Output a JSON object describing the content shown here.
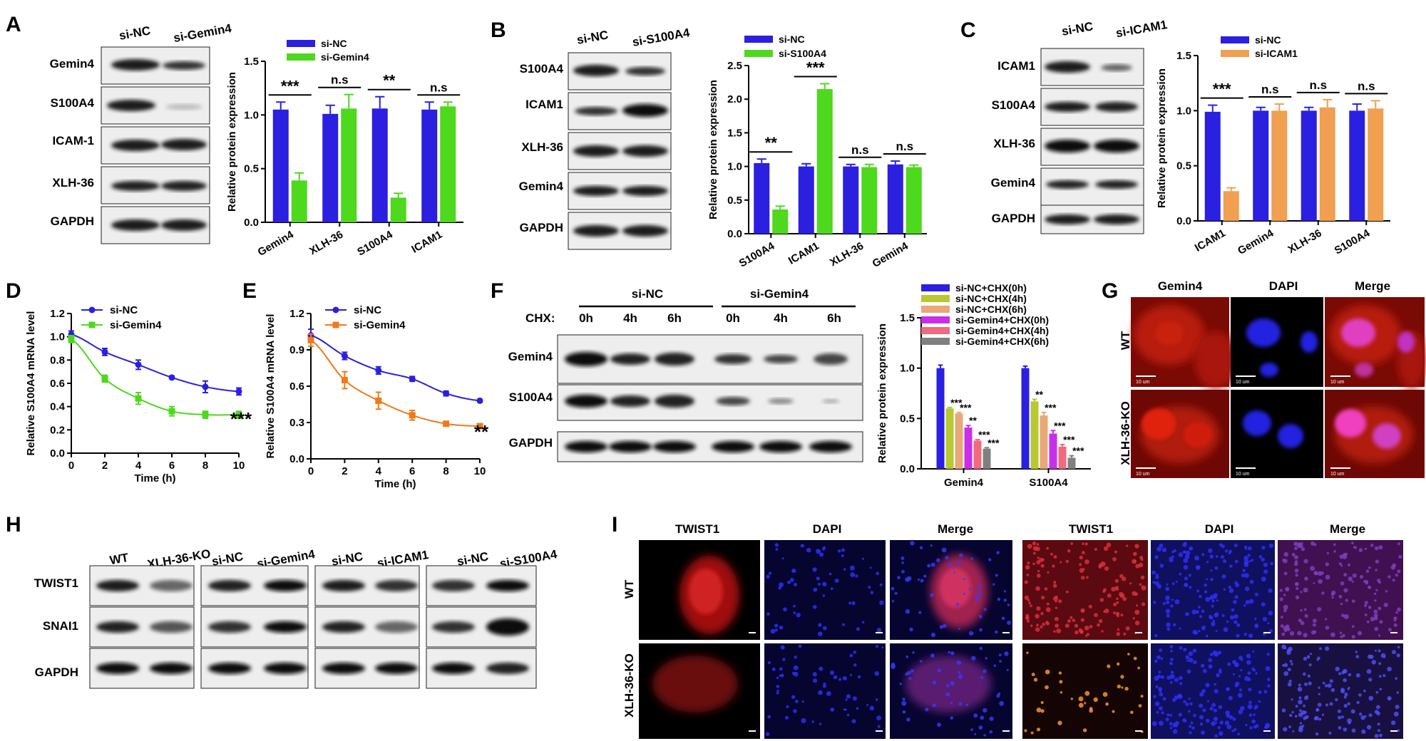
{
  "panel_labels": {
    "A": "A",
    "B": "B",
    "C": "C",
    "D": "D",
    "E": "E",
    "F": "F",
    "G": "G",
    "H": "H",
    "I": "I"
  },
  "blots": {
    "A": {
      "headers": [
        "si-NC",
        "si-Gemin4"
      ],
      "rows": [
        "Gemin4",
        "S100A4",
        "ICAM-1",
        "XLH-36",
        "GAPDH"
      ]
    },
    "B": {
      "headers": [
        "si-NC",
        "si-S100A4"
      ],
      "rows": [
        "S100A4",
        "ICAM1",
        "XLH-36",
        "Gemin4",
        "GAPDH"
      ]
    },
    "C": {
      "headers": [
        "si-NC",
        "si-ICAM1"
      ],
      "rows": [
        "ICAM1",
        "S100A4",
        "XLH-36",
        "Gemin4",
        "GAPDH"
      ]
    },
    "F": {
      "groups": [
        "si-NC",
        "si-Gemin4"
      ],
      "chx_label": "CHX:",
      "times": [
        "0h",
        "4h",
        "6h",
        "0h",
        "4h",
        "6h"
      ],
      "rows": [
        "Gemin4",
        "S100A4",
        "GAPDH"
      ]
    },
    "H": {
      "headers": [
        "WT",
        "XLH-36-KO",
        "si-NC",
        "si-Gemin4",
        "si-NC",
        "si-ICAM1",
        "si-NC",
        "si-S100A4"
      ],
      "rows": [
        "TWIST1",
        "SNAI1",
        "GAPDH"
      ]
    }
  },
  "chart_data": [
    {
      "id": "A",
      "type": "bar",
      "categories": [
        "Gemin4",
        "XLH-36",
        "S100A4",
        "ICAM1"
      ],
      "series": [
        {
          "name": "si-NC",
          "values": [
            1.05,
            1.01,
            1.06,
            1.05
          ],
          "errors": [
            0.07,
            0.08,
            0.11,
            0.07
          ],
          "color": "#2b1fe0"
        },
        {
          "name": "si-Gemin4",
          "values": [
            0.39,
            1.06,
            0.23,
            1.08
          ],
          "errors": [
            0.07,
            0.13,
            0.04,
            0.04
          ],
          "color": "#4ed81e"
        }
      ],
      "ylabel": "Relative protein expression",
      "ylim": [
        0,
        1.5
      ],
      "yticks": [
        "0.0",
        "0.5",
        "1.0",
        "1.5"
      ],
      "significance": [
        "***",
        "n.s",
        "**",
        "n.s"
      ]
    },
    {
      "id": "B",
      "type": "bar",
      "categories": [
        "S100A4",
        "ICAM1",
        "XLH-36",
        "Gemin4"
      ],
      "series": [
        {
          "name": "si-NC",
          "values": [
            1.05,
            1.0,
            1.0,
            1.03
          ],
          "errors": [
            0.06,
            0.04,
            0.03,
            0.05
          ],
          "color": "#2b1fe0"
        },
        {
          "name": "si-S100A4",
          "values": [
            0.36,
            2.15,
            0.99,
            0.99
          ],
          "errors": [
            0.05,
            0.08,
            0.04,
            0.03
          ],
          "color": "#4ed81e"
        }
      ],
      "ylabel": "Relative protein expression",
      "ylim": [
        0,
        2.5
      ],
      "yticks": [
        "0.0",
        "0.5",
        "1.0",
        "1.5",
        "2.0",
        "2.5"
      ],
      "significance": [
        "**",
        "***",
        "n.s",
        "n.s"
      ]
    },
    {
      "id": "C",
      "type": "bar",
      "categories": [
        "ICAM1",
        "Gemin4",
        "XLH-36",
        "S100A4"
      ],
      "series": [
        {
          "name": "si-NC",
          "values": [
            0.99,
            1.0,
            1.0,
            1.0
          ],
          "errors": [
            0.06,
            0.03,
            0.03,
            0.06
          ],
          "color": "#2b1fe0"
        },
        {
          "name": "si-ICAM1",
          "values": [
            0.27,
            1.0,
            1.03,
            1.02
          ],
          "errors": [
            0.03,
            0.06,
            0.07,
            0.07
          ],
          "color": "#f0a050"
        }
      ],
      "ylabel": "Relative protein expression",
      "ylim": [
        0,
        1.5
      ],
      "yticks": [
        "0.0",
        "0.5",
        "1.0",
        "1.5"
      ],
      "significance": [
        "***",
        "n.s",
        "n.s",
        "n.s"
      ]
    },
    {
      "id": "D",
      "type": "line",
      "x": [
        0,
        2,
        4,
        6,
        8,
        10
      ],
      "series": [
        {
          "name": "si-NC",
          "values": [
            1.02,
            0.87,
            0.76,
            0.65,
            0.57,
            0.53
          ],
          "errors": [
            0.03,
            0.03,
            0.04,
            0.01,
            0.05,
            0.03
          ],
          "color": "#2b1fe0"
        },
        {
          "name": "si-Gemin4",
          "values": [
            0.98,
            0.64,
            0.47,
            0.36,
            0.33,
            0.33
          ],
          "errors": [
            0.03,
            0.03,
            0.05,
            0.04,
            0.03,
            0.03
          ],
          "color": "#4ed81e"
        }
      ],
      "xlabel": "Time (h)",
      "ylabel": "Relative S100A4 mRNA level",
      "xlim": [
        0,
        10
      ],
      "ylim": [
        0,
        1.2
      ],
      "xticks": [
        "0",
        "2",
        "4",
        "6",
        "8",
        "10"
      ],
      "yticks": [
        "0.0",
        "0.2",
        "0.4",
        "0.6",
        "0.8",
        "1.0",
        "1.2"
      ],
      "annotation": "***"
    },
    {
      "id": "E",
      "type": "line",
      "x": [
        0,
        2,
        4,
        6,
        8,
        10
      ],
      "series": [
        {
          "name": "si-NC",
          "values": [
            1.02,
            0.85,
            0.73,
            0.66,
            0.54,
            0.48
          ],
          "errors": [
            0.05,
            0.03,
            0.03,
            0.02,
            0.02,
            0.01
          ],
          "color": "#2b1fe0"
        },
        {
          "name": "si-Gemin4",
          "values": [
            0.98,
            0.65,
            0.48,
            0.36,
            0.29,
            0.27
          ],
          "errors": [
            0.05,
            0.07,
            0.07,
            0.04,
            0.01,
            0.01
          ],
          "color": "#f07a1a"
        }
      ],
      "xlabel": "Time (h)",
      "ylabel": "Relative S100A4 mRNA level",
      "xlim": [
        0,
        10
      ],
      "ylim": [
        0,
        1.2
      ],
      "xticks": [
        "0",
        "2",
        "4",
        "6",
        "8",
        "10"
      ],
      "yticks": [
        "0.0",
        "0.3",
        "0.6",
        "0.9",
        "1.2"
      ],
      "annotation": "**"
    },
    {
      "id": "F",
      "type": "bar",
      "categories": [
        "Gemin4",
        "S100A4"
      ],
      "series": [
        {
          "name": "si-NC+CHX(0h)",
          "values": [
            1.0,
            1.0
          ],
          "errors": [
            0.03,
            0.02
          ],
          "color": "#2b1fe0"
        },
        {
          "name": "si-NC+CHX(4h)",
          "values": [
            0.6,
            0.67
          ],
          "errors": [
            0.01,
            0.02
          ],
          "color": "#b8c832"
        },
        {
          "name": "si-NC+CHX(6h)",
          "values": [
            0.55,
            0.53
          ],
          "errors": [
            0.01,
            0.03
          ],
          "color": "#e8a878"
        },
        {
          "name": "si-Gemin4+CHX(0h)",
          "values": [
            0.41,
            0.35
          ],
          "errors": [
            0.02,
            0.03
          ],
          "color": "#c830e8"
        },
        {
          "name": "si-Gemin4+CHX(4h)",
          "values": [
            0.28,
            0.22
          ],
          "errors": [
            0.01,
            0.02
          ],
          "color": "#f06a80"
        },
        {
          "name": "si-Gemin4+CHX(6h)",
          "values": [
            0.2,
            0.11
          ],
          "errors": [
            0.01,
            0.02
          ],
          "color": "#808080"
        }
      ],
      "ylabel": "Relative protein expression",
      "ylim": [
        0,
        1.5
      ],
      "yticks": [
        "0.0",
        "0.5",
        "1.0",
        "1.5"
      ],
      "significance": [
        [
          "",
          "***",
          "***",
          "**",
          "***",
          "***"
        ],
        [
          "",
          "**",
          "***",
          "***",
          "***",
          "***"
        ]
      ]
    }
  ],
  "panel_G": {
    "columns": [
      "Gemin4",
      "DAPI",
      "Merge"
    ],
    "rows": [
      "WT",
      "XLH-36-KO"
    ],
    "scale_text": "10 um"
  },
  "panel_I": {
    "columns": [
      "TWIST1",
      "DAPI",
      "Merge",
      "TWIST1",
      "DAPI",
      "Merge"
    ],
    "rows": [
      "WT",
      "XLH-36-KO"
    ]
  }
}
